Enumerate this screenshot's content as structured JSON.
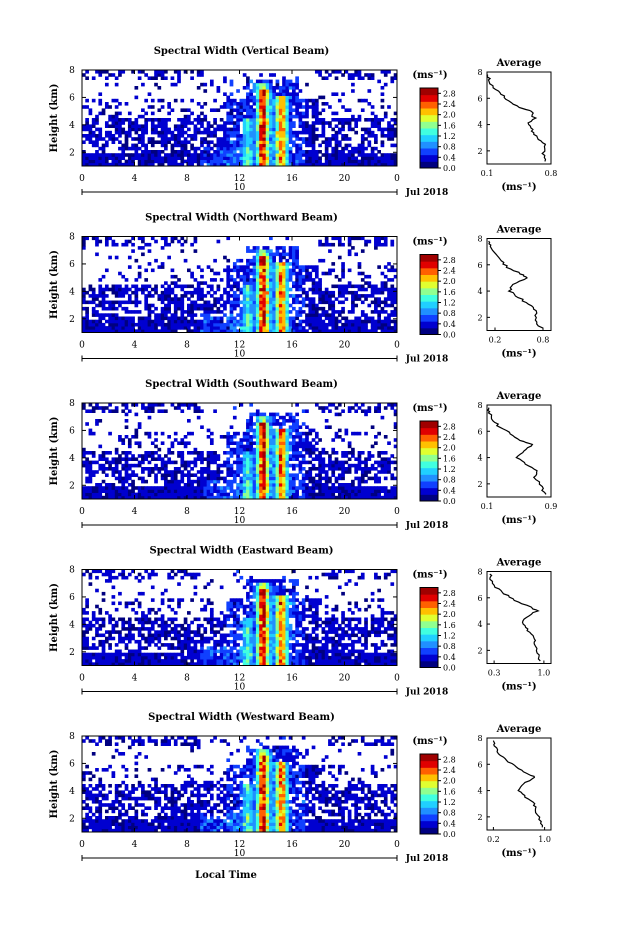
{
  "figure": {
    "date_label": "Jul 2018",
    "xlabel_bottom": "Local Time",
    "colorbar_unit": "(ms⁻¹)",
    "avg_title": "Average",
    "avg_xlabel": "(ms⁻¹)",
    "ylabel": "Height (km)",
    "day_label": "10",
    "colors": {
      "colormap": [
        "#000080",
        "#0000d0",
        "#1040ff",
        "#2090ff",
        "#20d0ff",
        "#40ffe0",
        "#90ff90",
        "#e0ff30",
        "#ffc000",
        "#ff6000",
        "#e00000",
        "#a00000"
      ]
    }
  },
  "chart_data": [
    {
      "type": "heatmap",
      "title": "Spectral Width (Vertical Beam)",
      "x_ticks": [
        "0",
        "4",
        "8",
        "12",
        "16",
        "20",
        "0"
      ],
      "y_ticks": [
        "2",
        "4",
        "6",
        "8"
      ],
      "xlim": [
        0,
        24
      ],
      "ylim": [
        1,
        8
      ],
      "colorbar_ticks": [
        "2.8",
        "2.4",
        "2.0",
        "1.6",
        "1.2",
        "0.8",
        "0.4",
        "0.0"
      ],
      "colorbar_range": [
        0,
        3.0
      ],
      "avg_x_ticks": [
        "0.1",
        "0.8"
      ],
      "avg_xlim": [
        0.1,
        0.8
      ],
      "avg_profile": [
        [
          1.2,
          0.75
        ],
        [
          1.8,
          0.72
        ],
        [
          2.5,
          0.74
        ],
        [
          3.0,
          0.66
        ],
        [
          3.5,
          0.6
        ],
        [
          4.0,
          0.55
        ],
        [
          4.5,
          0.62
        ],
        [
          5.0,
          0.58
        ],
        [
          5.3,
          0.45
        ],
        [
          5.8,
          0.35
        ],
        [
          6.3,
          0.25
        ],
        [
          6.8,
          0.18
        ],
        [
          7.4,
          0.12
        ],
        [
          7.8,
          0.11
        ]
      ]
    },
    {
      "type": "heatmap",
      "title": "Spectral Width (Northward Beam)",
      "x_ticks": [
        "0",
        "4",
        "8",
        "12",
        "16",
        "20",
        "0"
      ],
      "y_ticks": [
        "2",
        "4",
        "6",
        "8"
      ],
      "xlim": [
        0,
        24
      ],
      "ylim": [
        1,
        8
      ],
      "colorbar_ticks": [
        "2.8",
        "2.4",
        "2.0",
        "1.6",
        "1.2",
        "0.8",
        "0.4",
        "0.0"
      ],
      "colorbar_range": [
        0,
        3.0
      ],
      "avg_x_ticks": [
        "0.2",
        "0.8"
      ],
      "avg_xlim": [
        0.1,
        0.9
      ],
      "avg_profile": [
        [
          1.2,
          0.78
        ],
        [
          1.8,
          0.7
        ],
        [
          2.5,
          0.72
        ],
        [
          3.0,
          0.62
        ],
        [
          3.5,
          0.5
        ],
        [
          4.0,
          0.38
        ],
        [
          4.5,
          0.42
        ],
        [
          5.0,
          0.6
        ],
        [
          5.3,
          0.52
        ],
        [
          5.8,
          0.36
        ],
        [
          6.3,
          0.28
        ],
        [
          6.8,
          0.2
        ],
        [
          7.4,
          0.14
        ],
        [
          7.8,
          0.12
        ]
      ]
    },
    {
      "type": "heatmap",
      "title": "Spectral Width (Southward Beam)",
      "x_ticks": [
        "0",
        "4",
        "8",
        "12",
        "16",
        "20",
        "0"
      ],
      "y_ticks": [
        "2",
        "4",
        "6",
        "8"
      ],
      "xlim": [
        0,
        24
      ],
      "ylim": [
        1,
        8
      ],
      "colorbar_ticks": [
        "2.8",
        "2.4",
        "2.0",
        "1.6",
        "1.2",
        "0.8",
        "0.4",
        "0.0"
      ],
      "colorbar_range": [
        0,
        3.0
      ],
      "avg_x_ticks": [
        "0.1",
        "0.9"
      ],
      "avg_xlim": [
        0.1,
        0.9
      ],
      "avg_profile": [
        [
          1.2,
          0.82
        ],
        [
          1.8,
          0.78
        ],
        [
          2.5,
          0.7
        ],
        [
          3.0,
          0.72
        ],
        [
          3.5,
          0.58
        ],
        [
          4.0,
          0.48
        ],
        [
          4.5,
          0.55
        ],
        [
          5.0,
          0.68
        ],
        [
          5.3,
          0.5
        ],
        [
          5.8,
          0.4
        ],
        [
          6.3,
          0.26
        ],
        [
          6.8,
          0.18
        ],
        [
          7.4,
          0.13
        ],
        [
          7.8,
          0.12
        ]
      ]
    },
    {
      "type": "heatmap",
      "title": "Spectral Width (Eastward Beam)",
      "x_ticks": [
        "0",
        "4",
        "8",
        "12",
        "16",
        "20",
        "0"
      ],
      "y_ticks": [
        "2",
        "4",
        "6",
        "8"
      ],
      "xlim": [
        0,
        24
      ],
      "ylim": [
        1,
        8
      ],
      "colorbar_ticks": [
        "2.8",
        "2.4",
        "2.0",
        "1.6",
        "1.2",
        "0.8",
        "0.4",
        "0.0"
      ],
      "colorbar_range": [
        0,
        3.0
      ],
      "avg_x_ticks": [
        "0.3",
        "1.0"
      ],
      "avg_xlim": [
        0.2,
        1.1
      ],
      "avg_profile": [
        [
          1.2,
          0.95
        ],
        [
          1.8,
          0.92
        ],
        [
          2.5,
          0.88
        ],
        [
          3.0,
          0.86
        ],
        [
          3.5,
          0.78
        ],
        [
          4.0,
          0.7
        ],
        [
          4.5,
          0.74
        ],
        [
          5.0,
          0.9
        ],
        [
          5.3,
          0.8
        ],
        [
          5.8,
          0.6
        ],
        [
          6.3,
          0.45
        ],
        [
          6.8,
          0.32
        ],
        [
          7.4,
          0.26
        ],
        [
          7.8,
          0.24
        ]
      ]
    },
    {
      "type": "heatmap",
      "title": "Spectral Width (Westward Beam)",
      "x_ticks": [
        "0",
        "4",
        "8",
        "12",
        "16",
        "20",
        "0"
      ],
      "y_ticks": [
        "2",
        "4",
        "6",
        "8"
      ],
      "xlim": [
        0,
        24
      ],
      "ylim": [
        1,
        8
      ],
      "colorbar_ticks": [
        "2.8",
        "2.4",
        "2.0",
        "1.6",
        "1.2",
        "0.8",
        "0.4",
        "0.0"
      ],
      "colorbar_range": [
        0,
        3.0
      ],
      "avg_x_ticks": [
        "0.2",
        "1.0"
      ],
      "avg_xlim": [
        0.1,
        1.1
      ],
      "avg_profile": [
        [
          1.2,
          0.98
        ],
        [
          1.8,
          0.92
        ],
        [
          2.5,
          0.86
        ],
        [
          3.0,
          0.84
        ],
        [
          3.5,
          0.7
        ],
        [
          4.0,
          0.6
        ],
        [
          4.5,
          0.66
        ],
        [
          5.0,
          0.85
        ],
        [
          5.3,
          0.72
        ],
        [
          5.8,
          0.55
        ],
        [
          6.3,
          0.4
        ],
        [
          6.8,
          0.28
        ],
        [
          7.4,
          0.22
        ],
        [
          7.8,
          0.2
        ]
      ]
    }
  ]
}
